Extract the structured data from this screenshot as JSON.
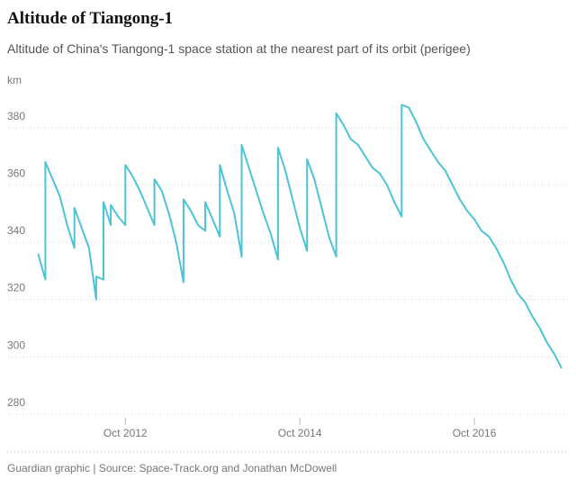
{
  "chart_data": {
    "type": "line",
    "title": "Altitude of Tiangong-1",
    "subtitle": "Altitude of China's Tiangong-1 space station at the nearest part of its orbit (perigee)",
    "y_label": "km",
    "source": "Guardian graphic | Source: Space-Track.org and Jonathan McDowell",
    "color": "#4dc3d6",
    "grid": true,
    "x": [
      "2011-10",
      "2011-11",
      "2011-11",
      "2011-12",
      "2012-01",
      "2012-02",
      "2012-03",
      "2012-03",
      "2012-04",
      "2012-05",
      "2012-06",
      "2012-06",
      "2012-07",
      "2012-07",
      "2012-08",
      "2012-08",
      "2012-09",
      "2012-10",
      "2012-10",
      "2012-11",
      "2012-12",
      "2013-01",
      "2013-02",
      "2013-02",
      "2013-03",
      "2013-04",
      "2013-05",
      "2013-06",
      "2013-06",
      "2013-07",
      "2013-08",
      "2013-09",
      "2013-09",
      "2013-10",
      "2013-11",
      "2013-11",
      "2013-12",
      "2014-01",
      "2014-02",
      "2014-02",
      "2014-03",
      "2014-04",
      "2014-05",
      "2014-06",
      "2014-07",
      "2014-07",
      "2014-08",
      "2014-09",
      "2014-10",
      "2014-11",
      "2014-11",
      "2014-12",
      "2015-01",
      "2015-02",
      "2015-03",
      "2015-03",
      "2015-04",
      "2015-05",
      "2015-06",
      "2015-07",
      "2015-08",
      "2015-09",
      "2015-10",
      "2015-11",
      "2015-12",
      "2015-12",
      "2016-01",
      "2016-02",
      "2016-03",
      "2016-04",
      "2016-05",
      "2016-06",
      "2016-07",
      "2016-08",
      "2016-09",
      "2016-10",
      "2016-11",
      "2016-12",
      "2017-01",
      "2017-02",
      "2017-03",
      "2017-04",
      "2017-05",
      "2017-06",
      "2017-07",
      "2017-08",
      "2017-09",
      "2017-10"
    ],
    "values": [
      336,
      327,
      368,
      362,
      356,
      346,
      338,
      352,
      345,
      338,
      320,
      328,
      327,
      354,
      346,
      353,
      349,
      346,
      367,
      363,
      358,
      352,
      346,
      362,
      358,
      350,
      340,
      326,
      355,
      351,
      346,
      344,
      354,
      348,
      342,
      367,
      358,
      350,
      335,
      374,
      366,
      358,
      350,
      343,
      334,
      373,
      365,
      355,
      345,
      337,
      369,
      362,
      352,
      342,
      335,
      385,
      381,
      376,
      374,
      370,
      366,
      364,
      360,
      354,
      349,
      388,
      387,
      382,
      376,
      372,
      368,
      365,
      360,
      355,
      351,
      348,
      344,
      342,
      338,
      333,
      327,
      322,
      319,
      314,
      310,
      305,
      301,
      296
    ],
    "xlim": [
      "2011-06",
      "2017-10"
    ],
    "xticks": [
      {
        "value": "2012-10",
        "label": "Oct 2012"
      },
      {
        "value": "2014-10",
        "label": "Oct 2014"
      },
      {
        "value": "2016-10",
        "label": "Oct 2016"
      }
    ],
    "ylim": [
      280,
      390
    ],
    "yticks": [
      280,
      300,
      320,
      340,
      360,
      380
    ]
  }
}
